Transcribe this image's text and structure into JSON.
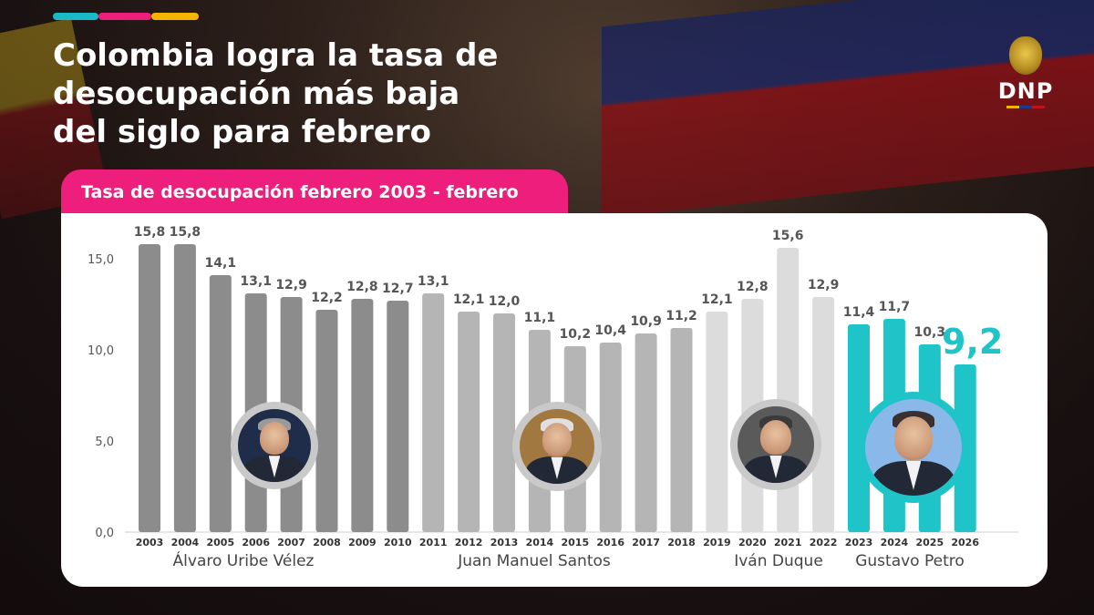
{
  "header": {
    "title_lines": [
      "Colombia logra la tasa de",
      "desocupación más baja",
      "del siglo para febrero"
    ],
    "accent_colors": [
      "#1ab9c6",
      "#ee1e7c",
      "#f5b400"
    ]
  },
  "logo": {
    "name": "DNP",
    "icon": "coat-of-arms-icon",
    "stripe_colors": [
      "#f5b400",
      "#1f3a8a",
      "#c0141c"
    ]
  },
  "subtitle": "Tasa de desocupación febrero 2003 - febrero 2026",
  "colors": {
    "uribe": "#8c8c8c",
    "santos": "#b5b5b5",
    "duque": "#dcdcdc",
    "petro": "#1ec4c8",
    "label": "#555555",
    "highlight": "#1ec4c8"
  },
  "presidents": [
    {
      "name": "Álvaro Uribe Vélez",
      "years": [
        "2003",
        "2010"
      ],
      "color_key": "uribe"
    },
    {
      "name": "Juan Manuel Santos",
      "years": [
        "2011",
        "2018"
      ],
      "color_key": "santos"
    },
    {
      "name": "Iván Duque",
      "years": [
        "2019",
        "2022"
      ],
      "color_key": "duque"
    },
    {
      "name": "Gustavo Petro",
      "years": [
        "2023",
        "2026"
      ],
      "color_key": "petro"
    }
  ],
  "chart_data": {
    "type": "bar",
    "title": "Tasa de desocupación febrero 2003 - febrero 2026",
    "categories": [
      "2003",
      "2004",
      "2005",
      "2006",
      "2007",
      "2008",
      "2009",
      "2010",
      "2011",
      "2012",
      "2013",
      "2014",
      "2015",
      "2016",
      "2017",
      "2018",
      "2019",
      "2020",
      "2021",
      "2022",
      "2023",
      "2024",
      "2025",
      "2026"
    ],
    "values": [
      15.8,
      15.8,
      14.1,
      13.1,
      12.9,
      12.2,
      12.8,
      12.7,
      13.1,
      12.1,
      12.0,
      11.1,
      10.2,
      10.4,
      10.9,
      11.2,
      12.1,
      12.8,
      15.6,
      12.9,
      11.4,
      11.7,
      10.3,
      9.2
    ],
    "value_labels": [
      "15,8",
      "15,8",
      "14,1",
      "13,1",
      "12,9",
      "12,2",
      "12,8",
      "12,7",
      "13,1",
      "12,1",
      "12,0",
      "11,1",
      "10,2",
      "10,4",
      "10,9",
      "11,2",
      "12,1",
      "12,8",
      "15,6",
      "12,9",
      "11,4",
      "11,7",
      "10,3",
      "9,2"
    ],
    "yticks": [
      0,
      5,
      10,
      15
    ],
    "ytick_labels": [
      "0,0",
      "5,0",
      "10,0",
      "15,0"
    ],
    "ylim": [
      0,
      16.5
    ],
    "xlabel": "",
    "ylabel": "",
    "grid": false,
    "highlight_index": 23
  }
}
